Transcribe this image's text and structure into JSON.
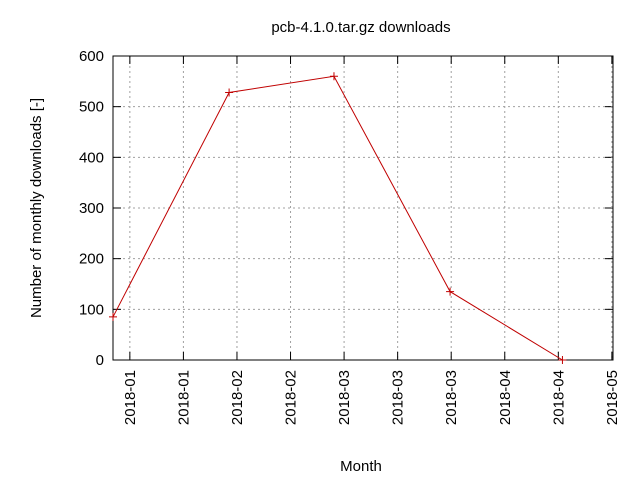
{
  "chart_data": {
    "type": "line",
    "title": "pcb-4.1.0.tar.gz downloads",
    "x_label": "Month",
    "y_label": "Number of monthly downloads [-]",
    "x": [
      0,
      31,
      59,
      90,
      120
    ],
    "series": [
      {
        "name": "pcb-4.1.0.tar.gz",
        "color": "#c00000",
        "values": [
          85,
          528,
          560,
          135,
          0
        ]
      }
    ],
    "xlim": [
      0,
      133.5
    ],
    "xticks": [
      {
        "value": 4.5,
        "label": "2018-01"
      },
      {
        "value": 18.8,
        "label": "2018-01"
      },
      {
        "value": 33.1,
        "label": "2018-02"
      },
      {
        "value": 47.4,
        "label": "2018-02"
      },
      {
        "value": 61.7,
        "label": "2018-03"
      },
      {
        "value": 76,
        "label": "2018-03"
      },
      {
        "value": 90.3,
        "label": "2018-03"
      },
      {
        "value": 104.6,
        "label": "2018-04"
      },
      {
        "value": 118.9,
        "label": "2018-04"
      },
      {
        "value": 133.2,
        "label": "2018-05"
      }
    ],
    "ylim": [
      0,
      600
    ],
    "yticks": [
      0,
      100,
      200,
      300,
      400,
      500,
      600
    ],
    "grid": true
  }
}
